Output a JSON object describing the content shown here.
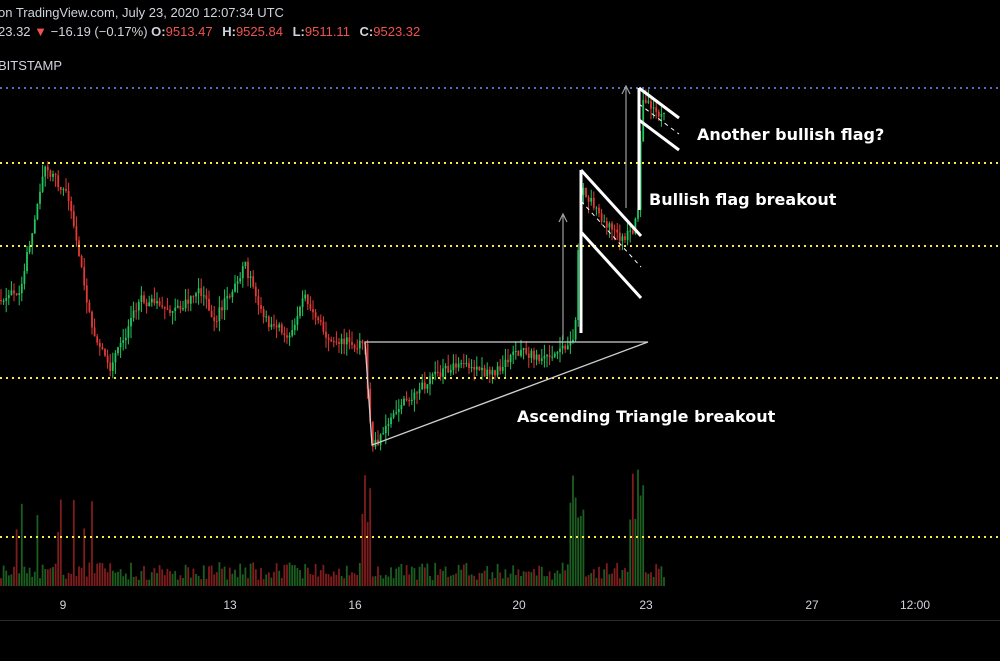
{
  "header": {
    "line1": "on TradingView.com, July 23, 2020 12:07:34 UTC",
    "last": "23.32",
    "change_arrow": "▼",
    "change": "−16.19 (−0.17%)",
    "o_label": "O:",
    "o_value": "9513.47",
    "h_label": "H:",
    "h_value": "9525.84",
    "l_label": "L:",
    "l_value": "9511.11",
    "c_label": "C:",
    "c_value": "9523.32",
    "exchange": "BITSTAMP"
  },
  "colors": {
    "up": "#26a69a",
    "down": "#ef5350",
    "bull_candle": "#22c55e",
    "bear_candle": "#e53935",
    "support_line": "#ffeb3b",
    "price_line": "#5c6bc0",
    "drawing": "#ffffff"
  },
  "annotations": {
    "another_flag": "Another bullish flag?",
    "flag_breakout": "Bullish flag breakout",
    "triangle_breakout": "Ascending Triangle breakout"
  },
  "chart_data": {
    "type": "candlestick",
    "x_ticks": [
      "9",
      "13",
      "16",
      "20",
      "23",
      "27",
      "12:00"
    ],
    "horizontal_levels": 4,
    "grid": false,
    "patterns": [
      "ascending triangle",
      "bullish flag",
      "bullish flag"
    ]
  }
}
